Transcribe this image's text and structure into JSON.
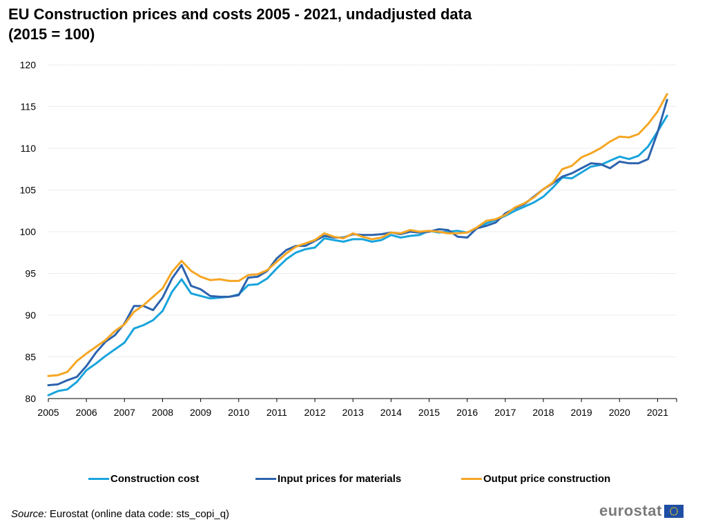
{
  "title_line1": "EU Construction prices and costs 2005 - 2021, undadjusted data",
  "title_line2": "(2015 = 100)",
  "source": {
    "label": "Source:",
    "text": "Eurostat (online data code: sts_copi_q)"
  },
  "logo_text": "eurostat",
  "chart_data": {
    "type": "line",
    "title": "EU Construction prices and costs 2005 - 2021, undadjusted data (2015 = 100)",
    "xlabel": "",
    "ylabel": "",
    "ylim": [
      80,
      120
    ],
    "y_ticks": [
      80,
      85,
      90,
      95,
      100,
      105,
      110,
      115,
      120
    ],
    "x_tick_labels": [
      "2005",
      "2006",
      "2007",
      "2008",
      "2009",
      "2010",
      "2011",
      "2012",
      "2013",
      "2014",
      "2015",
      "2016",
      "2017",
      "2018",
      "2019",
      "2020",
      "2021"
    ],
    "grid": "horizontal",
    "legend_placement": "bottom",
    "x": [
      "2005Q1",
      "2005Q2",
      "2005Q3",
      "2005Q4",
      "2006Q1",
      "2006Q2",
      "2006Q3",
      "2006Q4",
      "2007Q1",
      "2007Q2",
      "2007Q3",
      "2007Q4",
      "2008Q1",
      "2008Q2",
      "2008Q3",
      "2008Q4",
      "2009Q1",
      "2009Q2",
      "2009Q3",
      "2009Q4",
      "2010Q1",
      "2010Q2",
      "2010Q3",
      "2010Q4",
      "2011Q1",
      "2011Q2",
      "2011Q3",
      "2011Q4",
      "2012Q1",
      "2012Q2",
      "2012Q3",
      "2012Q4",
      "2013Q1",
      "2013Q2",
      "2013Q3",
      "2013Q4",
      "2014Q1",
      "2014Q2",
      "2014Q3",
      "2014Q4",
      "2015Q1",
      "2015Q2",
      "2015Q3",
      "2015Q4",
      "2016Q1",
      "2016Q2",
      "2016Q3",
      "2016Q4",
      "2017Q1",
      "2017Q2",
      "2017Q3",
      "2017Q4",
      "2018Q1",
      "2018Q2",
      "2018Q3",
      "2018Q4",
      "2019Q1",
      "2019Q2",
      "2019Q3",
      "2019Q4",
      "2020Q1",
      "2020Q2",
      "2020Q3",
      "2020Q4",
      "2021Q1",
      "2021Q2"
    ],
    "series": [
      {
        "name": "Construction cost",
        "color": "#18a4dc",
        "values": [
          80.4,
          80.9,
          81.1,
          82.0,
          83.4,
          84.2,
          85.1,
          85.9,
          86.7,
          88.4,
          88.8,
          89.4,
          90.5,
          92.8,
          94.3,
          92.6,
          92.3,
          92.0,
          92.1,
          92.2,
          92.5,
          93.6,
          93.7,
          94.4,
          95.6,
          96.7,
          97.5,
          97.9,
          98.1,
          99.2,
          99.0,
          98.8,
          99.1,
          99.1,
          98.8,
          99.0,
          99.6,
          99.3,
          99.5,
          99.6,
          100.1,
          99.9,
          100.0,
          100.1,
          99.9,
          100.4,
          101.0,
          101.4,
          101.9,
          102.5,
          103.0,
          103.5,
          104.2,
          105.3,
          106.5,
          106.4,
          107.1,
          107.8,
          108.0,
          108.5,
          109.0,
          108.7,
          109.1,
          110.2,
          112.0,
          113.9
        ]
      },
      {
        "name": "Input prices for materials",
        "color": "#2c63ad",
        "values": [
          81.6,
          81.7,
          82.2,
          82.6,
          83.9,
          85.5,
          86.8,
          87.6,
          89.0,
          91.1,
          91.1,
          90.6,
          92.1,
          94.4,
          96.0,
          93.5,
          93.1,
          92.3,
          92.2,
          92.2,
          92.4,
          94.5,
          94.6,
          95.3,
          96.8,
          97.8,
          98.3,
          98.3,
          98.9,
          99.5,
          99.3,
          99.3,
          99.7,
          99.6,
          99.6,
          99.7,
          99.9,
          99.7,
          100.0,
          99.9,
          100.0,
          100.3,
          100.2,
          99.4,
          99.3,
          100.4,
          100.7,
          101.1,
          102.2,
          102.8,
          103.3,
          104.2,
          105.1,
          105.8,
          106.6,
          107.0,
          107.6,
          108.2,
          108.1,
          107.6,
          108.4,
          108.2,
          108.2,
          108.7,
          111.9,
          115.8
        ]
      },
      {
        "name": "Output price construction",
        "color": "#f5a623",
        "values": [
          82.7,
          82.8,
          83.2,
          84.5,
          85.4,
          86.2,
          87.0,
          88.1,
          88.9,
          90.4,
          91.2,
          92.2,
          93.2,
          95.2,
          96.5,
          95.3,
          94.6,
          94.2,
          94.3,
          94.1,
          94.1,
          94.8,
          94.9,
          95.4,
          96.4,
          97.4,
          98.2,
          98.6,
          99.0,
          99.8,
          99.4,
          99.2,
          99.8,
          99.4,
          99.1,
          99.3,
          99.9,
          99.8,
          100.2,
          100.0,
          100.1,
          100.0,
          99.8,
          99.8,
          99.9,
          100.5,
          101.3,
          101.5,
          102.0,
          102.9,
          103.4,
          104.1,
          105.1,
          105.9,
          107.5,
          107.9,
          108.9,
          109.4,
          110.0,
          110.8,
          111.4,
          111.3,
          111.7,
          112.9,
          114.4,
          116.5
        ]
      }
    ]
  }
}
